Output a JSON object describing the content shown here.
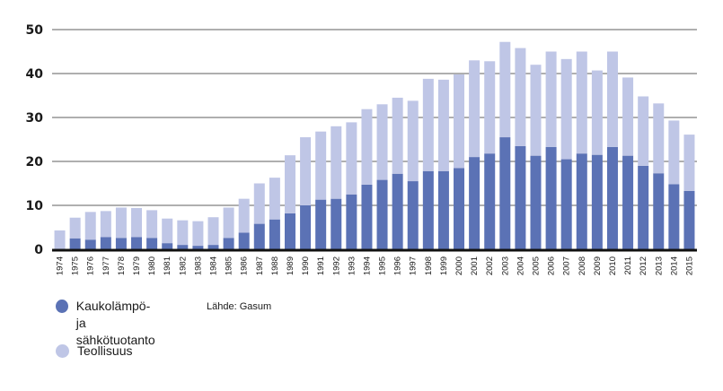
{
  "chart_data": {
    "type": "bar",
    "stacked": true,
    "categories": [
      "1974",
      "1975",
      "1976",
      "1977",
      "1978",
      "1979",
      "1980",
      "1981",
      "1982",
      "1983",
      "1984",
      "1985",
      "1986",
      "1987",
      "1988",
      "1989",
      "1990",
      "1991",
      "1992",
      "1993",
      "1994",
      "1995",
      "1996",
      "1997",
      "1998",
      "1999",
      "2000",
      "2001",
      "2002",
      "2003",
      "2004",
      "2005",
      "2006",
      "2007",
      "2008",
      "2009",
      "2010",
      "2011",
      "2012",
      "2013",
      "2014",
      "2015"
    ],
    "series": [
      {
        "name": "Kaukolämpö- ja\nsähkötuotanto",
        "color": "#5b72b5",
        "values": [
          0,
          2.5,
          2.2,
          2.8,
          2.6,
          2.8,
          2.6,
          1.4,
          1.0,
          0.8,
          1.0,
          2.6,
          3.8,
          5.8,
          6.8,
          8.2,
          10.0,
          11.3,
          11.5,
          12.5,
          14.7,
          15.8,
          17.2,
          15.5,
          17.8,
          17.8,
          18.5,
          21.0,
          21.8,
          25.5,
          23.5,
          21.3,
          23.3,
          20.5,
          21.8,
          21.5,
          23.3,
          21.3,
          19.0,
          17.3,
          14.8,
          13.3
        ]
      },
      {
        "name": "Teollisuus",
        "color": "#bfc6e6",
        "values": [
          4.3,
          4.7,
          6.3,
          5.9,
          6.9,
          6.6,
          6.3,
          5.6,
          5.6,
          5.6,
          6.3,
          6.9,
          7.7,
          9.2,
          9.5,
          13.2,
          15.5,
          15.5,
          16.5,
          16.4,
          17.2,
          17.2,
          17.3,
          18.3,
          21.0,
          20.8,
          21.3,
          22.0,
          21.0,
          21.7,
          22.3,
          20.7,
          21.7,
          22.8,
          23.2,
          19.2,
          21.7,
          17.8,
          15.8,
          15.9,
          14.5,
          12.8
        ]
      }
    ],
    "ylim": [
      0,
      50
    ],
    "yticks": [
      0,
      10,
      20,
      30,
      40,
      50
    ],
    "grid": true,
    "legend_position": "bottom-left",
    "source": "Lähde: Gasum"
  }
}
